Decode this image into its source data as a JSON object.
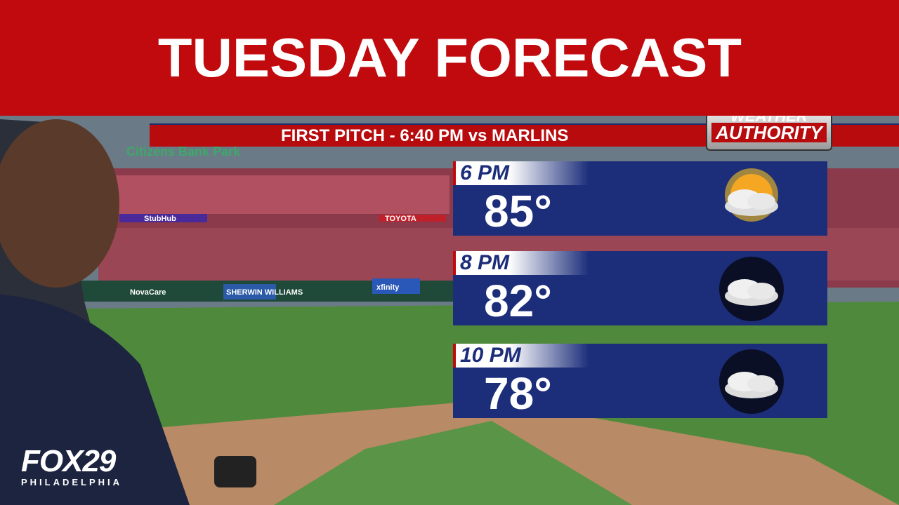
{
  "header": {
    "title": "TUESDAY FORECAST"
  },
  "banner": {
    "text": "FIRST PITCH - 6:40 PM vs MARLINS"
  },
  "brand": {
    "line1": "WEATHER",
    "line2": "AUTHORITY"
  },
  "forecast": [
    {
      "time": "6 PM",
      "temp": "85°"
    },
    {
      "time": "8 PM",
      "temp": "82°"
    },
    {
      "time": "10 PM",
      "temp": "78°"
    }
  ],
  "stadium_signs": [
    "Citizens Bank Park",
    "StubHub",
    "NovaCare",
    "SHERWIN WILLIAMS",
    "xfinity",
    "TOYOTA"
  ],
  "logo": {
    "name": "FOX29",
    "city": "PHILADELPHIA"
  }
}
